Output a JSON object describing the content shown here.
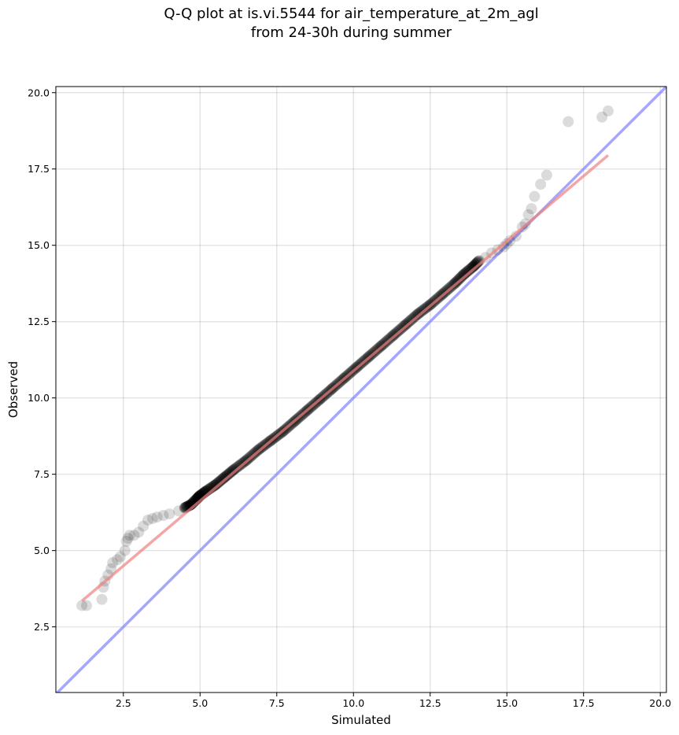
{
  "title": {
    "line1": "Q-Q plot at is.vi.5544 for air_temperature_at_2m_agl",
    "line2": "from 24-30h during summer"
  },
  "chart_data": {
    "type": "scatter",
    "title": "Q-Q plot at is.vi.5544 for air_temperature_at_2m_agl from 24-30h during summer",
    "xlabel": "Simulated",
    "ylabel": "Observed",
    "xlim": [
      0.3,
      20.2
    ],
    "ylim": [
      0.35,
      20.2
    ],
    "xticks": [
      "2.5",
      "5.0",
      "7.5",
      "10.0",
      "12.5",
      "15.0",
      "17.5",
      "20.0"
    ],
    "yticks": [
      "2.5",
      "5.0",
      "7.5",
      "10.0",
      "12.5",
      "15.0",
      "17.5",
      "20.0"
    ],
    "grid": true,
    "colors": {
      "points": "#000000",
      "fit_line": "#f08080",
      "identity_line": "#8888ff"
    },
    "series": [
      {
        "role": "quantiles",
        "x": [
          1.15,
          1.3,
          1.8,
          1.85,
          1.9,
          2.0,
          2.1,
          2.15,
          2.3,
          2.4,
          2.55,
          2.6,
          2.65,
          2.7,
          2.85,
          3.0,
          3.15,
          3.3,
          3.45,
          3.6,
          3.8,
          4.0,
          4.3,
          4.5,
          4.7,
          4.9,
          5.0,
          5.2,
          5.5,
          5.8,
          6.1,
          6.5,
          6.9,
          7.3,
          7.7,
          8.1,
          8.5,
          8.9,
          9.3,
          9.7,
          10.1,
          10.5,
          10.9,
          11.3,
          11.7,
          12.1,
          12.5,
          12.9,
          13.3,
          13.6,
          13.9,
          14.1,
          14.3,
          14.5,
          14.7,
          14.9,
          15.0,
          15.1,
          15.3,
          15.5,
          15.6,
          15.7,
          15.8,
          15.9,
          16.1,
          16.3,
          17.0,
          18.1,
          18.3
        ],
        "y": [
          3.2,
          3.2,
          3.4,
          3.8,
          4.0,
          4.2,
          4.4,
          4.6,
          4.7,
          4.8,
          5.0,
          5.3,
          5.4,
          5.5,
          5.5,
          5.6,
          5.8,
          6.0,
          6.05,
          6.1,
          6.15,
          6.2,
          6.3,
          6.4,
          6.5,
          6.7,
          6.8,
          6.95,
          7.15,
          7.4,
          7.65,
          7.95,
          8.3,
          8.6,
          8.9,
          9.25,
          9.6,
          9.95,
          10.3,
          10.65,
          11.0,
          11.35,
          11.7,
          12.05,
          12.4,
          12.75,
          13.05,
          13.4,
          13.75,
          14.05,
          14.3,
          14.5,
          14.6,
          14.75,
          14.85,
          14.95,
          15.05,
          15.15,
          15.3,
          15.6,
          15.7,
          16.0,
          16.2,
          16.6,
          17.0,
          17.3,
          19.05,
          19.2,
          19.4
        ]
      },
      {
        "role": "fit-line",
        "x": [
          1.15,
          18.3
        ],
        "y": [
          3.35,
          17.95
        ]
      },
      {
        "role": "identity-line",
        "x": [
          0.3,
          20.2
        ],
        "y": [
          0.3,
          20.2
        ]
      }
    ]
  }
}
